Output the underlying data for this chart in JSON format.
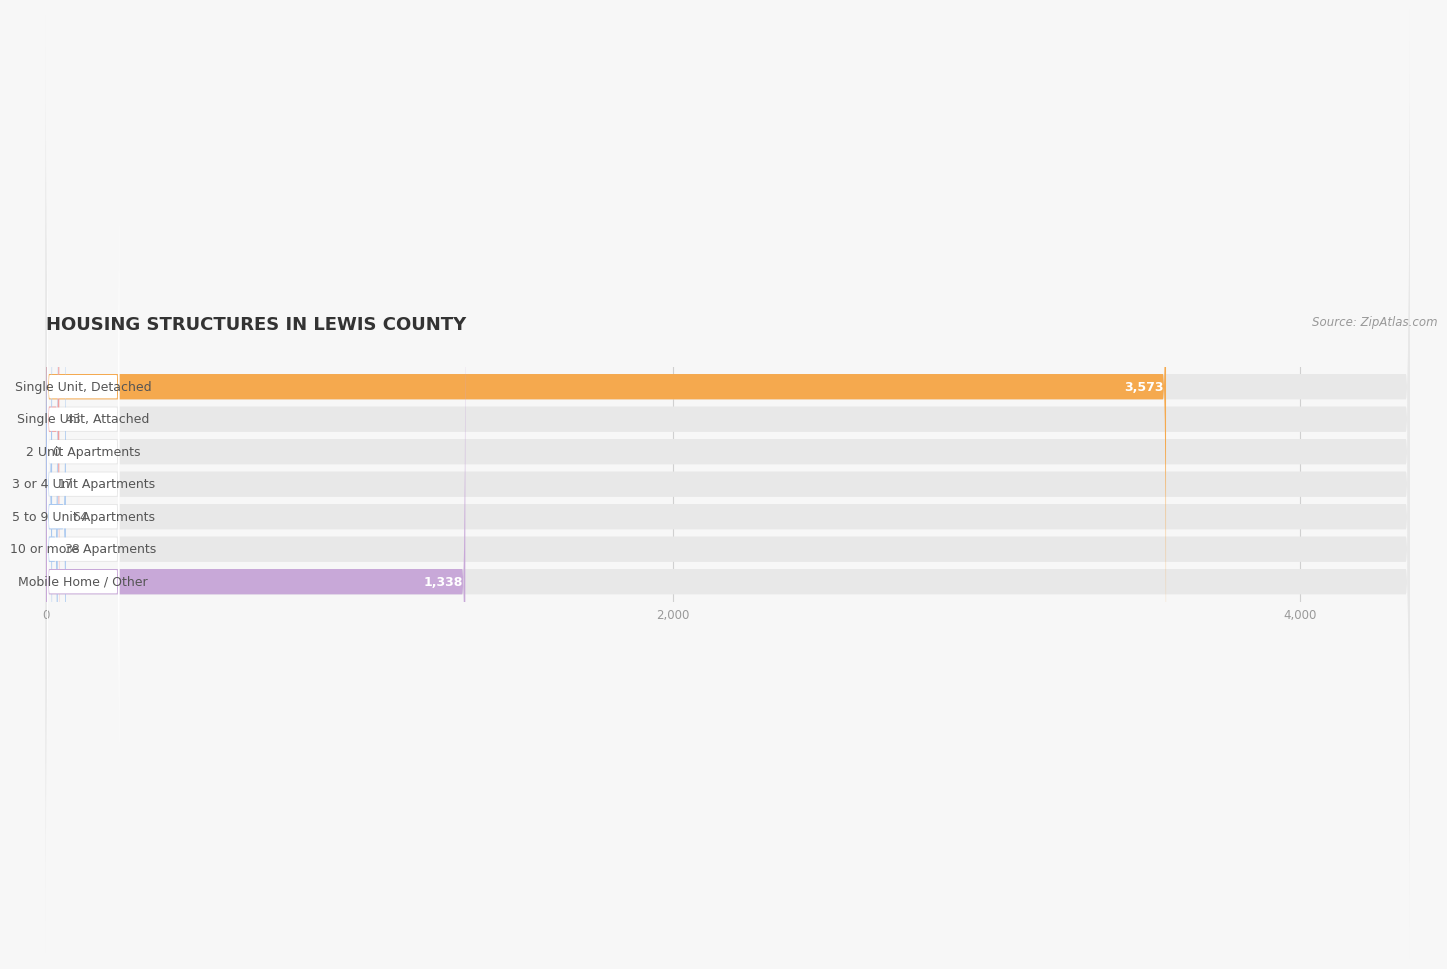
{
  "title": "HOUSING STRUCTURES IN LEWIS COUNTY",
  "source": "Source: ZipAtlas.com",
  "categories": [
    "Single Unit, Detached",
    "Single Unit, Attached",
    "2 Unit Apartments",
    "3 or 4 Unit Apartments",
    "5 to 9 Unit Apartments",
    "10 or more Apartments",
    "Mobile Home / Other"
  ],
  "values": [
    3573,
    43,
    0,
    17,
    64,
    38,
    1338
  ],
  "bar_colors": [
    "#f5a94e",
    "#f0a0a0",
    "#a8c8f0",
    "#a8c8f0",
    "#a8c8f0",
    "#a8c8f0",
    "#c8a8d8"
  ],
  "background_color": "#f7f7f7",
  "bar_bg_color": "#e8e8e8",
  "bar_bg_color2": "#efefef",
  "xlim_max": 4350,
  "xticks": [
    0,
    2000,
    4000
  ],
  "title_fontsize": 13,
  "label_fontsize": 9,
  "value_fontsize": 9,
  "source_fontsize": 8.5
}
